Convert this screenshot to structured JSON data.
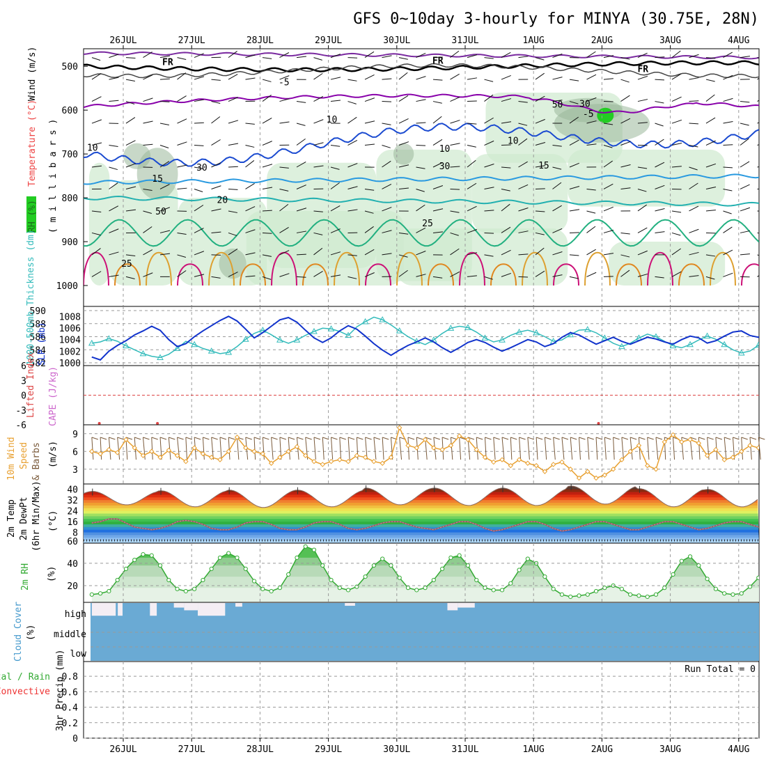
{
  "chart_data": {
    "type": "meteogram",
    "title": "GFS 0~10day 3-hourly for MINYA (30.75E, 28N)",
    "dates": [
      "26JUL",
      "27JUL",
      "28JUL",
      "29JUL",
      "30JUL",
      "31JUL",
      "1AUG",
      "2AUG",
      "3AUG",
      "4AUG"
    ],
    "colors": {
      "thickness": "#33bbbb",
      "slp": "#1133cc",
      "wind": "#e8a030",
      "barb": "#7a5a3a",
      "rh2m": "#33aa33",
      "cloud": "#6aaad4",
      "cloudHigh": "#f4eef4",
      "lifted": "#dd4444",
      "cape": "#cc66cc",
      "green": "#22cc22",
      "red": "#ee3333",
      "purple": "#8800aa",
      "mint": "#cfe9cf",
      "dew": "#ee66aa"
    },
    "upper_air": {
      "ylabel_wind": "Wind (m/s)",
      "ylabel_temp": "Temperature (°C)",
      "ylabel_rh": "RH (%)",
      "ylabel_mb": "( m i l l i b a r s )",
      "levels": [
        500,
        600,
        700,
        800,
        900,
        1000
      ],
      "ylim": [
        460,
        1000
      ],
      "contour_labels": [
        {
          "text": "FR",
          "x": 1.15,
          "p": 497
        },
        {
          "text": "FR",
          "x": 5.1,
          "p": 494
        },
        {
          "text": "FR",
          "x": 8.1,
          "p": 513
        },
        {
          "text": "-5",
          "x": 2.85,
          "p": 543
        },
        {
          "text": "-5",
          "x": 7.3,
          "p": 616
        },
        {
          "text": "10",
          "x": 0.05,
          "p": 693
        },
        {
          "text": "10",
          "x": 3.55,
          "p": 628
        },
        {
          "text": "10",
          "x": 6.2,
          "p": 677
        },
        {
          "text": "15",
          "x": 1.0,
          "p": 763
        },
        {
          "text": "15",
          "x": 6.65,
          "p": 733
        },
        {
          "text": "20",
          "x": 1.95,
          "p": 812
        },
        {
          "text": "25",
          "x": 4.95,
          "p": 865
        },
        {
          "text": "25",
          "x": 0.55,
          "p": 957
        },
        {
          "text": "10",
          "x": 5.2,
          "p": 695
        },
        {
          "text": "30",
          "x": 5.2,
          "p": 735
        },
        {
          "text": "30",
          "x": 1.65,
          "p": 738
        },
        {
          "text": "50",
          "x": 1.05,
          "p": 838
        },
        {
          "text": "50",
          "x": 6.85,
          "p": 594
        },
        {
          "text": "30",
          "x": 7.25,
          "p": 593
        }
      ]
    },
    "thickness_slp": {
      "ylabel": "1000-500mb Thickness (dm)",
      "ylabel2": "SLP (mb)",
      "thickness_ticks": [
        "590",
        "588",
        "586",
        "584",
        "582"
      ],
      "slp_ticks": [
        "1008",
        "1006",
        "1004",
        "1002",
        "1000"
      ],
      "thickness_range": [
        582,
        590
      ],
      "slp_range": [
        1000,
        1009
      ],
      "thickness": [
        585.0,
        585.2,
        585.7,
        585.3,
        584.6,
        584.0,
        583.4,
        583.0,
        582.8,
        583.3,
        584.2,
        585.3,
        584.8,
        584.2,
        583.8,
        583.4,
        583.6,
        584.5,
        585.6,
        586.5,
        587.0,
        586.3,
        585.5,
        585.0,
        585.5,
        586.2,
        586.8,
        587.3,
        587.2,
        586.8,
        586.2,
        587.5,
        588.3,
        589.0,
        588.6,
        587.8,
        586.9,
        586.0,
        585.3,
        584.8,
        585.5,
        586.5,
        587.3,
        587.6,
        587.4,
        586.7,
        585.8,
        585.2,
        585.5,
        586.2,
        586.7,
        587.0,
        586.6,
        586.0,
        585.3,
        585.5,
        586.3,
        587.0,
        587.1,
        586.6,
        585.8,
        585.0,
        584.5,
        585.0,
        585.8,
        586.4,
        586.0,
        585.3,
        584.6,
        584.3,
        584.8,
        585.5,
        586.1,
        585.6,
        584.8,
        584.0,
        583.5,
        583.8,
        584.7,
        585.5,
        585.3,
        584.5,
        583.8,
        583.0,
        582.4
      ],
      "slp": [
        1001.0,
        1000.5,
        1002.0,
        1003.0,
        1003.8,
        1004.8,
        1005.5,
        1006.3,
        1005.6,
        1004.0,
        1002.8,
        1003.3,
        1004.5,
        1005.5,
        1006.4,
        1007.3,
        1008.0,
        1007.2,
        1005.8,
        1004.3,
        1005.2,
        1006.3,
        1007.4,
        1007.8,
        1007.0,
        1005.6,
        1004.3,
        1003.5,
        1004.3,
        1005.5,
        1006.4,
        1005.8,
        1004.6,
        1003.3,
        1002.2,
        1001.3,
        1002.2,
        1003.0,
        1003.6,
        1004.3,
        1003.6,
        1002.6,
        1001.8,
        1002.6,
        1003.5,
        1004.0,
        1003.5,
        1002.7,
        1002.0,
        1002.6,
        1003.3,
        1004.0,
        1003.6,
        1002.8,
        1003.3,
        1004.4,
        1005.2,
        1004.8,
        1004.0,
        1003.2,
        1003.8,
        1004.4,
        1003.7,
        1003.2,
        1003.8,
        1004.4,
        1004.1,
        1003.6,
        1003.2,
        1004.0,
        1004.6,
        1004.3,
        1003.4,
        1003.8,
        1004.6,
        1005.3,
        1005.5,
        1004.7,
        1004.4,
        1005.0,
        1005.7,
        1006.0,
        1006.6,
        1007.8,
        1009.0
      ]
    },
    "lifted_cape": {
      "ylabel": "Lifted Index",
      "ylabel2": "CAPE (J/kg)",
      "ticks": [
        "6",
        "3",
        "0",
        "-3",
        "-6"
      ],
      "range": [
        -6,
        6
      ],
      "zero_line": 0
    },
    "wind10m": {
      "ylabel": "10m Wind",
      "ylabel2": "Speed",
      "ylabel3": "& Barbs",
      "ylabel_unit": "(m/s)",
      "ticks": [
        "9",
        "6",
        "3"
      ],
      "range": [
        0.5,
        10.5
      ],
      "speed": [
        6.0,
        5.6,
        6.3,
        5.8,
        8.0,
        6.6,
        5.3,
        6.0,
        5.0,
        6.2,
        5.3,
        4.3,
        6.6,
        5.6,
        5.0,
        4.6,
        6.0,
        8.4,
        6.6,
        6.0,
        5.6,
        4.0,
        5.0,
        6.0,
        6.8,
        5.3,
        4.3,
        3.8,
        4.3,
        4.6,
        4.3,
        5.3,
        5.0,
        4.3,
        4.0,
        5.0,
        10.0,
        7.0,
        6.6,
        8.0,
        6.6,
        6.3,
        7.0,
        8.6,
        8.0,
        6.3,
        5.0,
        4.2,
        4.6,
        3.6,
        4.6,
        4.0,
        3.6,
        2.6,
        3.8,
        4.2,
        3.0,
        1.5,
        2.6,
        1.5,
        2.0,
        3.0,
        4.6,
        6.0,
        7.0,
        3.6,
        3.0,
        7.6,
        8.8,
        7.6,
        8.0,
        7.4,
        5.3,
        6.3,
        4.6,
        5.0,
        6.0,
        7.0,
        6.6,
        7.0,
        5.3,
        4.3,
        6.6,
        3.3,
        3.3
      ],
      "barb_angles": [
        20,
        15,
        25,
        30,
        18,
        22,
        28,
        14,
        20,
        26,
        32,
        16,
        24,
        19,
        27,
        21,
        17,
        23,
        29,
        15,
        20,
        25,
        18,
        22,
        26,
        30,
        24,
        19,
        21,
        17
      ]
    },
    "temp2m": {
      "ylabel": "2m Temp",
      "ylabel2": "2m DewPt",
      "ylabel3": "(6hr Min/Max)",
      "ylabel_unit": "(°C)",
      "ticks": [
        "40",
        "32",
        "24",
        "16",
        "8",
        "60"
      ],
      "range": [
        0,
        44
      ],
      "temp_max": [
        38.5,
        39.0,
        39.5,
        39.5,
        41.0,
        41.0,
        41.0,
        42.5,
        40.5,
        40.0
      ],
      "temp_min": [
        28.5,
        27.0,
        26.5,
        27.0,
        28.5,
        28.0,
        28.0,
        29.0,
        27.0,
        27.0
      ],
      "dew": [
        15,
        16,
        18,
        18,
        15,
        12,
        11,
        10,
        11,
        13,
        16,
        17,
        16,
        14,
        11,
        10,
        10,
        12,
        15,
        16,
        16,
        14,
        11,
        10,
        10,
        12,
        15,
        16,
        16,
        14,
        11,
        10,
        11,
        13,
        15,
        16,
        16,
        14,
        12,
        11,
        10,
        12,
        14,
        16,
        16,
        14,
        11,
        9,
        10,
        12,
        14,
        16,
        16,
        14,
        11,
        9,
        10,
        12,
        14,
        16,
        16,
        14,
        12,
        10,
        10,
        12,
        14,
        16,
        16,
        14,
        12,
        10,
        11,
        13,
        15,
        16,
        16,
        14,
        12,
        10,
        11,
        13,
        15,
        16,
        14
      ]
    },
    "rh2m": {
      "ylabel": "2m RH",
      "ylabel_unit": "(%)",
      "ticks": [
        "40",
        "20"
      ],
      "range": [
        5,
        58
      ],
      "values": [
        12,
        13,
        15,
        25,
        35,
        43,
        48,
        47,
        38,
        25,
        17,
        15,
        17,
        25,
        35,
        45,
        49,
        45,
        35,
        24,
        17,
        15,
        18,
        30,
        45,
        55,
        52,
        38,
        25,
        18,
        16,
        19,
        28,
        38,
        44,
        38,
        27,
        18,
        16,
        18,
        25,
        35,
        45,
        47,
        38,
        25,
        18,
        16,
        16,
        22,
        34,
        44,
        40,
        28,
        17,
        12,
        10,
        11,
        12,
        15,
        18,
        20,
        17,
        12,
        11,
        10,
        12,
        18,
        30,
        42,
        46,
        38,
        26,
        17,
        13,
        12,
        13,
        19,
        27,
        33,
        30,
        20,
        13,
        12,
        14
      ]
    },
    "cloud": {
      "ylabel": "Cloud Cover",
      "ylabel_unit": "(%)",
      "levels": [
        "high",
        "middle",
        "low"
      ],
      "high_blocks": [
        [
          0.0,
          0.35,
          0.7
        ],
        [
          0.38,
          0.45,
          0.7
        ],
        [
          0.85,
          0.95,
          0.7
        ],
        [
          1.2,
          1.35,
          0.25
        ],
        [
          1.35,
          1.55,
          0.4
        ],
        [
          1.55,
          1.95,
          0.7
        ],
        [
          2.1,
          2.2,
          0.2
        ],
        [
          3.7,
          3.85,
          0.15
        ],
        [
          5.2,
          5.35,
          0.4
        ],
        [
          5.35,
          5.6,
          0.25
        ]
      ]
    },
    "precip": {
      "ylabel": "3hr Precip (mm)",
      "ylabel_total": "Total / Rain",
      "ylabel_conv": "Convective",
      "ticks": [
        "0.8",
        "0.6",
        "0.4",
        "0.2",
        "0"
      ],
      "range": [
        0,
        0.9
      ],
      "run_total_label": "Run Total = 0"
    }
  }
}
